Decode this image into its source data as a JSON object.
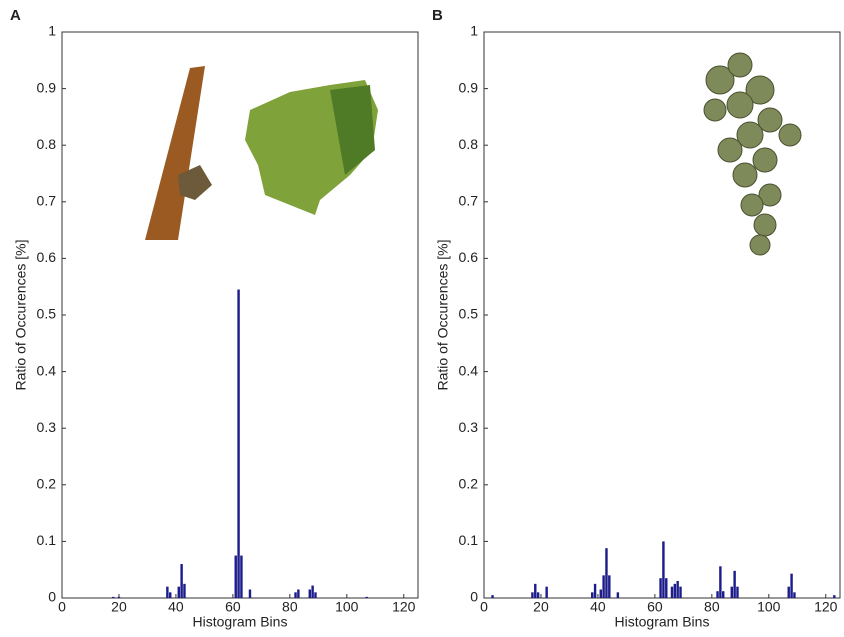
{
  "chart_data": [
    {
      "type": "bar",
      "panel": "A",
      "xlabel": "Histogram Bins",
      "ylabel": "Ratio of Occurences [%]",
      "x": [
        18,
        20,
        37,
        38,
        41,
        42,
        43,
        61,
        62,
        63,
        66,
        82,
        83,
        87,
        88,
        89,
        107
      ],
      "values": [
        0.002,
        0.002,
        0.02,
        0.01,
        0.02,
        0.06,
        0.025,
        0.075,
        0.545,
        0.075,
        0.015,
        0.01,
        0.015,
        0.015,
        0.022,
        0.01,
        0.002
      ],
      "color": "#1c1c8a",
      "xlim": [
        0,
        125
      ],
      "xticks": [
        0,
        20,
        40,
        60,
        80,
        100,
        120
      ],
      "ylim": [
        0,
        1
      ],
      "yticks": [
        0,
        0.1,
        0.2,
        0.3,
        0.4,
        0.5,
        0.6,
        0.7,
        0.8,
        0.9,
        1
      ]
    },
    {
      "type": "bar",
      "panel": "B",
      "xlabel": "Histogram Bins",
      "ylabel": "Ratio of Occurences [%]",
      "x": [
        3,
        17,
        18,
        19,
        22,
        38,
        39,
        41,
        42,
        43,
        44,
        47,
        62,
        63,
        64,
        66,
        67,
        68,
        69,
        82,
        83,
        84,
        87,
        88,
        89,
        107,
        108,
        109,
        123
      ],
      "values": [
        0.005,
        0.01,
        0.025,
        0.01,
        0.02,
        0.01,
        0.025,
        0.015,
        0.04,
        0.088,
        0.04,
        0.01,
        0.035,
        0.1,
        0.035,
        0.02,
        0.025,
        0.03,
        0.02,
        0.012,
        0.056,
        0.012,
        0.02,
        0.048,
        0.02,
        0.02,
        0.043,
        0.01,
        0.005
      ],
      "color": "#1c1c8a",
      "xlim": [
        0,
        125
      ],
      "xticks": [
        0,
        20,
        40,
        60,
        80,
        100,
        120
      ],
      "ylim": [
        0,
        1
      ],
      "yticks": [
        0,
        0.1,
        0.2,
        0.3,
        0.4,
        0.5,
        0.6,
        0.7,
        0.8,
        0.9,
        1
      ]
    }
  ]
}
